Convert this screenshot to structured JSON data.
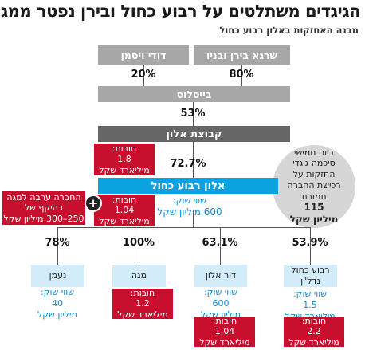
{
  "title": "הגיגדים משתלטים על רבוע כחול ובירן נפטר ממגה",
  "subtitle": "מבנה האחזקות באלון רבוע כחול",
  "shareholders": {
    "right": "שרגא בירן ובניו",
    "left": "דודי ויסמן"
  },
  "pct_right": "80%",
  "pct_left": "20%",
  "bycelsus": "בייסלוס",
  "pct_53": "53%",
  "alon_group": "קבוצת אלון",
  "debt_group": {
    "label": "חובות:",
    "value": "1.8",
    "unit": "מיליארד שקל"
  },
  "pct_727": "72.7%",
  "circle": {
    "line1": "ביום חמישי",
    "line2": "סיכמה גיגדי",
    "line3": "החזקות על",
    "line4": "רכישת החברה",
    "line5": "תמורת",
    "amount": "115",
    "unit": "מיליון שקל"
  },
  "alon_blue": "אלון רבוע כחול",
  "market_value": {
    "label": "שווי שוק:",
    "value": "600 מיליון שקל"
  },
  "debt_blue": {
    "label": "חובות:",
    "value": "1.04",
    "unit": "מיליארד שקל"
  },
  "guarantee": {
    "line1": "החברה ערבה למגה",
    "line2": "בהיקף של",
    "line3": "250–300 מיליון שקל"
  },
  "plus_sign": "+",
  "subs": [
    {
      "pct": "53.9%",
      "name1": "רבוע כחול",
      "name2": "נדל\"ן",
      "value_label": "שווי שוק:",
      "value": "1.5",
      "value_unit": "מיליארד שקל",
      "debt_label": "חובות:",
      "debt_value": "2.2",
      "debt_unit": "מיליארד שקל"
    },
    {
      "pct": "63.1%",
      "name1": "דור אלון",
      "value_label": "שווי שוק:",
      "value": "600",
      "value_unit": "מיליון שקל",
      "debt_label": "חובות:",
      "debt_value": "1.04",
      "debt_unit": "מיליארד שקל"
    },
    {
      "pct": "100%",
      "name1": "מגה",
      "debt_label": "חובות:",
      "debt_value": "1.2",
      "debt_unit": "מיליארד שקל"
    },
    {
      "pct": "78%",
      "name1": "נעמן",
      "value_label": "שווי שוק:",
      "value": "40",
      "value_unit": "מיליון שקל"
    }
  ]
}
